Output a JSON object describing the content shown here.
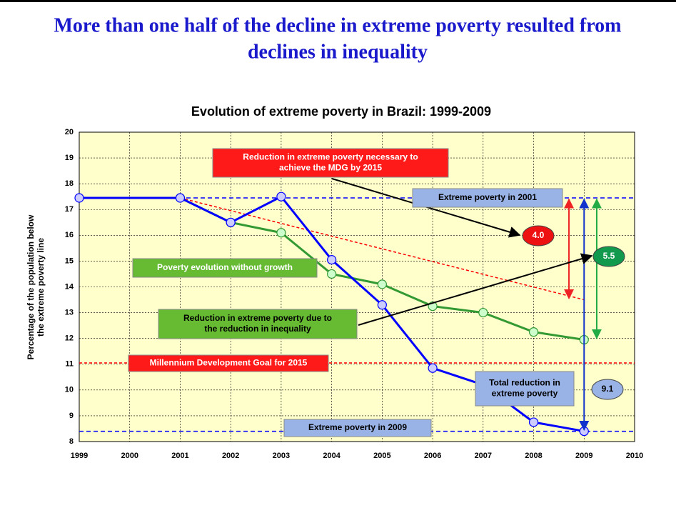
{
  "slide_title": [
    "More than one half of the decline in extreme poverty resulted from",
    "declines in inequality"
  ],
  "chart_data": {
    "type": "line",
    "title": "Evolution of extreme poverty in Brazil: 1999-2009",
    "y_label": [
      "Percentage of the population below",
      "the extreme poverty line"
    ],
    "xlim": [
      1999,
      2010
    ],
    "xticks": [
      1999,
      2000,
      2001,
      2002,
      2003,
      2004,
      2005,
      2006,
      2007,
      2008,
      2009,
      2010
    ],
    "ylim": [
      8,
      20
    ],
    "yticks": [
      8,
      9,
      10,
      11,
      12,
      13,
      14,
      15,
      16,
      17,
      18,
      19,
      20
    ],
    "grid": true,
    "series": [
      {
        "color": "#0000ff",
        "x": [
          1999,
          2001,
          2002,
          2003,
          2004,
          2005,
          2006,
          2007,
          2008,
          2009
        ],
        "values": [
          17.45,
          17.45,
          16.5,
          17.5,
          15.05,
          13.3,
          10.85,
          10.2,
          8.75,
          8.4
        ]
      },
      {
        "color": "#339933",
        "x": [
          2001,
          2002,
          2003,
          2004,
          2005,
          2006,
          2007,
          2008,
          2009
        ],
        "values": [
          17.45,
          16.5,
          16.1,
          14.5,
          14.1,
          13.25,
          13.0,
          12.25,
          11.95
        ]
      }
    ],
    "mdg_trend": {
      "color": "#ff0000",
      "x": [
        2001,
        2009
      ],
      "values": [
        17.45,
        13.5
      ]
    },
    "mdg_level": {
      "color": "#ff0000",
      "value": 11.05
    },
    "level_2001": {
      "color": "#0000ff",
      "value": 17.45
    },
    "level_2009": {
      "color": "#0000ff",
      "value": 8.4
    },
    "annotations": {
      "mdg_reduction": [
        "Reduction in extreme poverty  necessary to",
        "achieve the MDG by 2015"
      ],
      "ep2001": "Extreme poverty  in 2001",
      "without_growth": "Poverty evolution without growth",
      "inequality": [
        "Reduction in extreme poverty due to",
        "the reduction in inequality"
      ],
      "mdg_goal": "Millennium Development Goal  for 2015",
      "total": [
        "Total reduction in",
        "extreme poverty"
      ],
      "ep2009": "Extreme poverty  in 2009",
      "bubble_red": "4.0",
      "bubble_green": "5.5",
      "bubble_blue": "9.1"
    }
  }
}
